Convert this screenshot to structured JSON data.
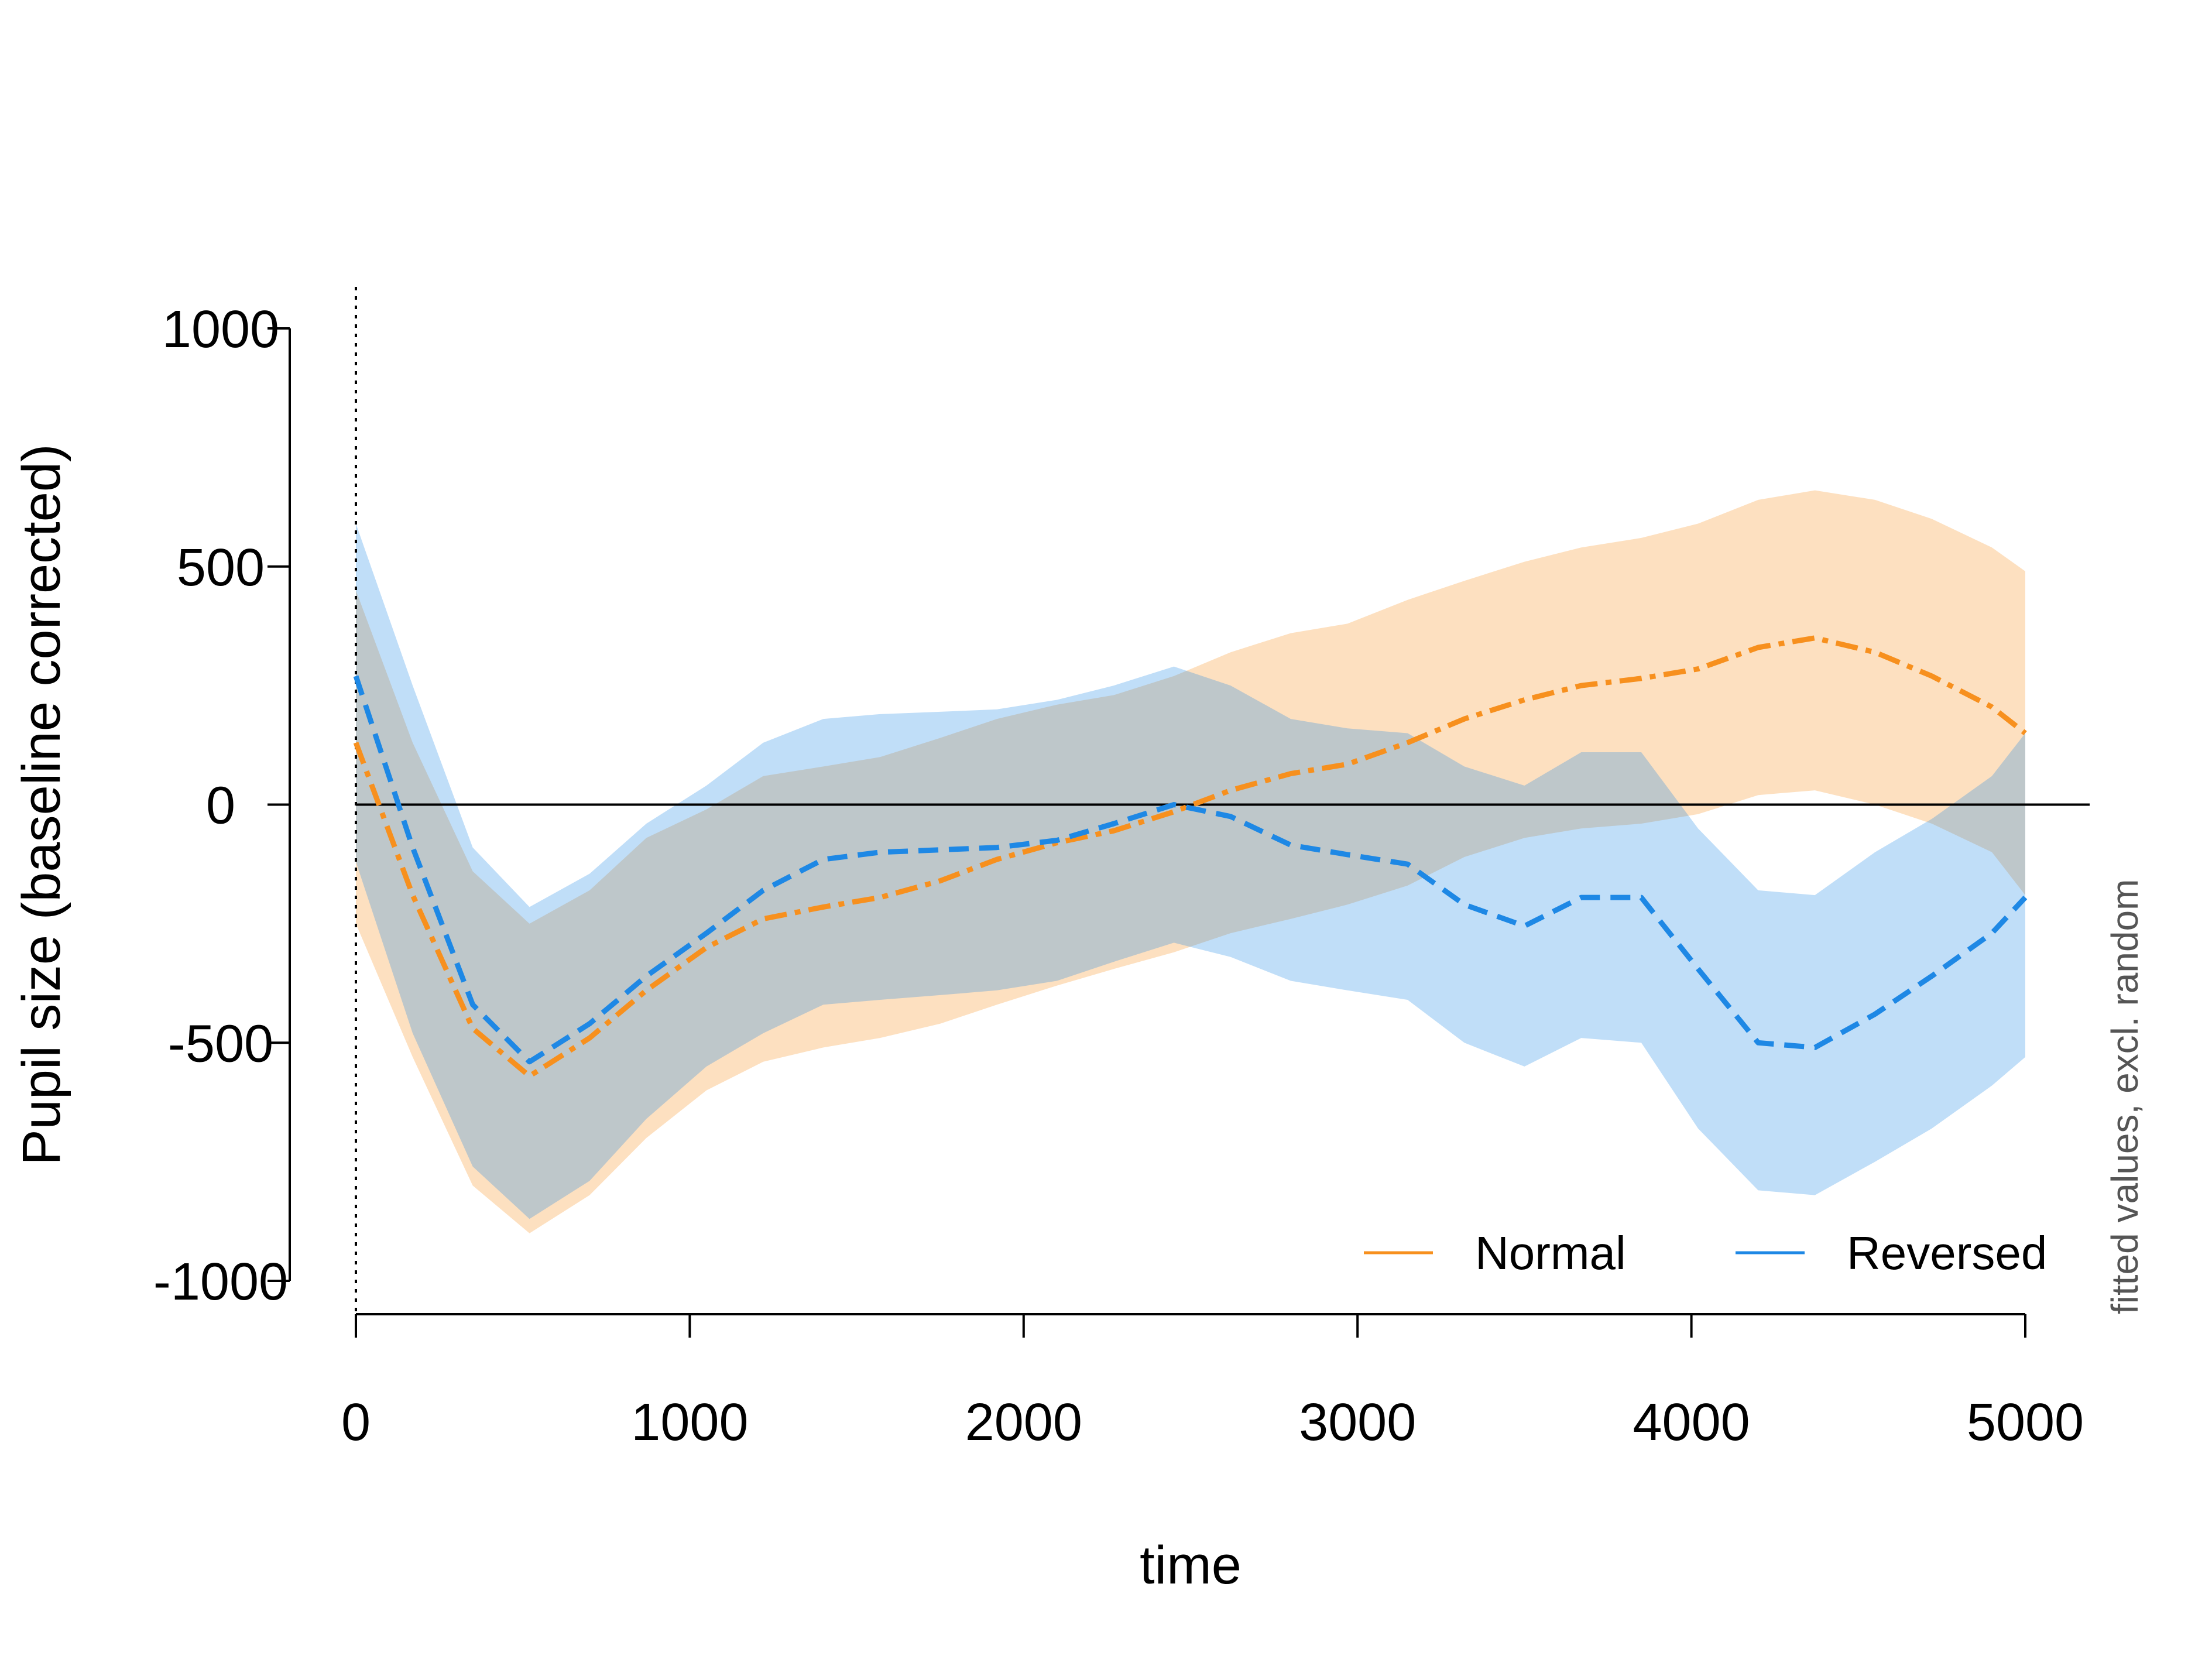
{
  "chart_data": {
    "type": "line",
    "xlabel": "time",
    "ylabel": "Pupil size (baseline corrected)",
    "note": "fitted values, excl. random",
    "xlim": [
      0,
      5000
    ],
    "ylim": [
      -1000,
      1000
    ],
    "x_ticks": [
      "0",
      "1000",
      "2000",
      "3000",
      "4000",
      "5000"
    ],
    "y_ticks": [
      "-1000",
      "-500",
      "0",
      "500",
      "1000"
    ],
    "reference_lines": {
      "horizontal_y": 0,
      "vertical_x": 0
    },
    "legend_position": "bottom-right, horizontal",
    "series": [
      {
        "name": "Normal",
        "color": "#f7901e",
        "band_color": "#fcd5a8",
        "x": [
          0,
          170,
          350,
          520,
          700,
          870,
          1050,
          1220,
          1400,
          1570,
          1750,
          1920,
          2100,
          2270,
          2450,
          2620,
          2800,
          2970,
          3150,
          3320,
          3500,
          3670,
          3850,
          4020,
          4200,
          4370,
          4550,
          4720,
          4900,
          5000
        ],
        "y": [
          130,
          -190,
          -470,
          -570,
          -490,
          -390,
          -300,
          -240,
          -215,
          -195,
          -160,
          -115,
          -80,
          -55,
          -15,
          30,
          65,
          85,
          130,
          180,
          220,
          250,
          265,
          285,
          330,
          350,
          320,
          270,
          205,
          150
        ],
        "lower": [
          -250,
          -530,
          -800,
          -900,
          -820,
          -700,
          -600,
          -540,
          -510,
          -490,
          -460,
          -420,
          -380,
          -345,
          -310,
          -270,
          -240,
          -210,
          -170,
          -110,
          -70,
          -50,
          -40,
          -20,
          20,
          30,
          0,
          -40,
          -100,
          -190
        ],
        "upper": [
          450,
          130,
          -140,
          -250,
          -180,
          -70,
          -10,
          60,
          80,
          100,
          140,
          180,
          210,
          230,
          270,
          320,
          360,
          380,
          430,
          470,
          510,
          540,
          560,
          590,
          640,
          660,
          640,
          600,
          540,
          490
        ]
      },
      {
        "name": "Reversed",
        "color": "#1e88e5",
        "band_color": "#bcdcf8",
        "x": [
          0,
          170,
          350,
          520,
          700,
          870,
          1050,
          1220,
          1400,
          1570,
          1750,
          1920,
          2100,
          2270,
          2450,
          2620,
          2800,
          2970,
          3150,
          3320,
          3500,
          3670,
          3850,
          4020,
          4200,
          4370,
          4550,
          4720,
          4900,
          5000
        ],
        "y": [
          270,
          -90,
          -420,
          -540,
          -460,
          -360,
          -270,
          -180,
          -115,
          -100,
          -95,
          -90,
          -75,
          -40,
          0,
          -25,
          -85,
          -105,
          -125,
          -210,
          -255,
          -195,
          -195,
          -345,
          -500,
          -510,
          -440,
          -360,
          -270,
          -195
        ],
        "lower": [
          -120,
          -480,
          -760,
          -870,
          -790,
          -660,
          -550,
          -480,
          -420,
          -410,
          -400,
          -390,
          -370,
          -330,
          -290,
          -320,
          -370,
          -390,
          -410,
          -500,
          -550,
          -490,
          -500,
          -680,
          -810,
          -820,
          -750,
          -680,
          -590,
          -530
        ],
        "upper": [
          590,
          250,
          -90,
          -215,
          -145,
          -40,
          40,
          130,
          180,
          190,
          195,
          200,
          220,
          250,
          290,
          250,
          180,
          160,
          150,
          80,
          40,
          110,
          110,
          -50,
          -180,
          -190,
          -100,
          -30,
          60,
          150
        ]
      }
    ]
  }
}
